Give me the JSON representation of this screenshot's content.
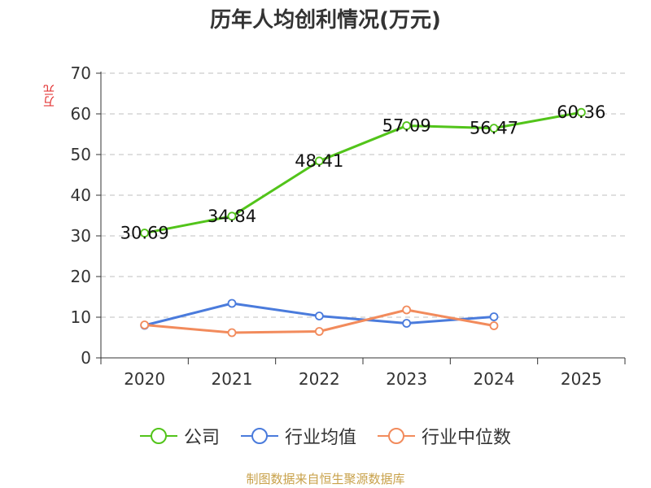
{
  "chart_data": {
    "type": "line",
    "title": "历年人均创利情况(万元)",
    "ylabel": "万元",
    "xlabel": "",
    "categories": [
      "2020",
      "2021",
      "2022",
      "2023",
      "2024",
      "2025"
    ],
    "ylim": [
      0,
      70
    ],
    "yticks": [
      0,
      10,
      20,
      30,
      40,
      50,
      60,
      70
    ],
    "grid": true,
    "legend_position": "bottom",
    "series": [
      {
        "name": "公司",
        "color": "#52c41a",
        "values": [
          30.69,
          34.84,
          48.41,
          57.09,
          56.47,
          60.36
        ],
        "labels": true
      },
      {
        "name": "行业均值",
        "color": "#4a7bdc",
        "values": [
          8.0,
          13.4,
          10.3,
          8.5,
          10.1,
          null
        ],
        "labels": false
      },
      {
        "name": "行业中位数",
        "color": "#f28b5c",
        "values": [
          8.1,
          6.2,
          6.5,
          11.8,
          7.9,
          null
        ],
        "labels": false
      }
    ]
  },
  "footer": {
    "source": "制图数据来自恒生聚源数据库",
    "source_color": "#c8a14a"
  },
  "colors": {
    "axis": "#333333",
    "grid": "#cccccc"
  }
}
